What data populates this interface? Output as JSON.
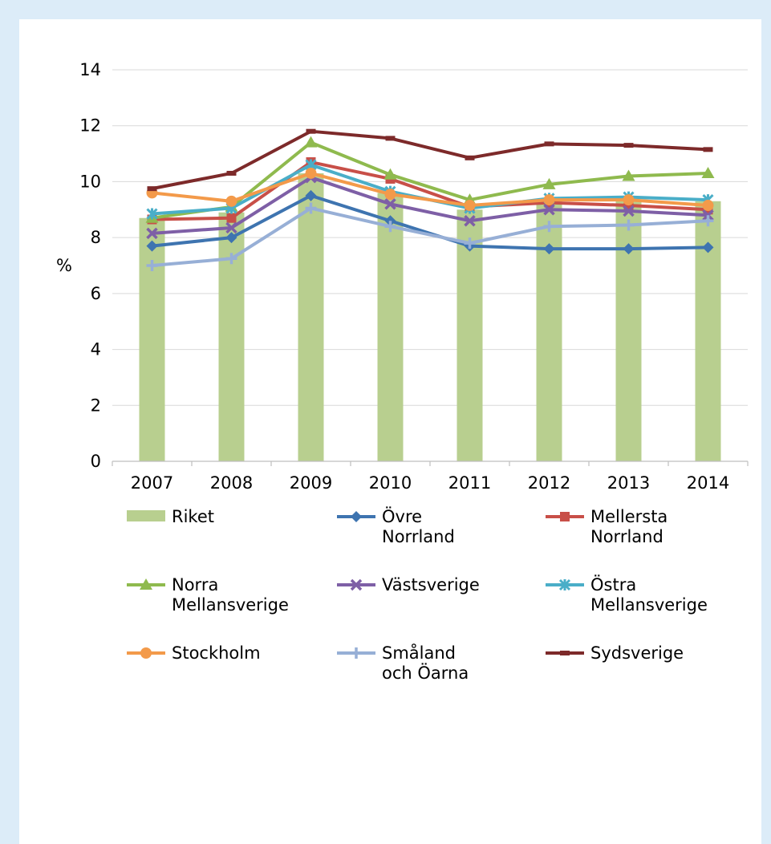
{
  "chart_data": {
    "type": "bar+line",
    "title": "",
    "xlabel": "",
    "ylabel": "%",
    "ylim": [
      0,
      14
    ],
    "yticks": [
      0,
      2,
      4,
      6,
      8,
      10,
      12,
      14
    ],
    "grid": true,
    "legend_position": "bottom",
    "categories": [
      "2007",
      "2008",
      "2009",
      "2010",
      "2011",
      "2012",
      "2013",
      "2014"
    ],
    "bar_series": {
      "name": "Riket",
      "values": [
        8.7,
        8.9,
        10.3,
        9.6,
        9.0,
        9.3,
        9.3,
        9.3
      ],
      "color": "#b8cf8f"
    },
    "series": [
      {
        "name": "Övre\nNorrland",
        "color": "#3e74b0",
        "marker": "diamond",
        "values": [
          7.7,
          8.0,
          9.5,
          8.6,
          7.7,
          7.6,
          7.6,
          7.65
        ]
      },
      {
        "name": "Mellersta\nNorrland",
        "color": "#c84f48",
        "marker": "square",
        "values": [
          8.65,
          8.7,
          10.7,
          10.1,
          9.1,
          9.25,
          9.15,
          9.0
        ]
      },
      {
        "name": "Norra\nMellansverige",
        "color": "#8fba4e",
        "marker": "triangle",
        "values": [
          8.7,
          9.1,
          11.4,
          10.25,
          9.35,
          9.9,
          10.2,
          10.3
        ]
      },
      {
        "name": "Västsverige",
        "color": "#7e5fa6",
        "marker": "x",
        "values": [
          8.15,
          8.35,
          10.15,
          9.2,
          8.6,
          9.0,
          8.95,
          8.8
        ]
      },
      {
        "name": "Östra\nMellansverige",
        "color": "#4aaec8",
        "marker": "star",
        "values": [
          8.85,
          9.05,
          10.6,
          9.65,
          9.05,
          9.4,
          9.45,
          9.35
        ]
      },
      {
        "name": "Stockholm",
        "color": "#f39a4a",
        "marker": "circle",
        "values": [
          9.6,
          9.3,
          10.3,
          9.55,
          9.15,
          9.35,
          9.35,
          9.15
        ]
      },
      {
        "name": "Småland\noch Öarna",
        "color": "#97afd6",
        "marker": "plus",
        "values": [
          7.0,
          7.25,
          9.05,
          8.4,
          7.8,
          8.4,
          8.45,
          8.6
        ]
      },
      {
        "name": "Sydsverige",
        "color": "#7d2a2a",
        "marker": "dash",
        "values": [
          9.75,
          10.3,
          11.8,
          11.55,
          10.85,
          11.35,
          11.3,
          11.15
        ]
      }
    ]
  }
}
